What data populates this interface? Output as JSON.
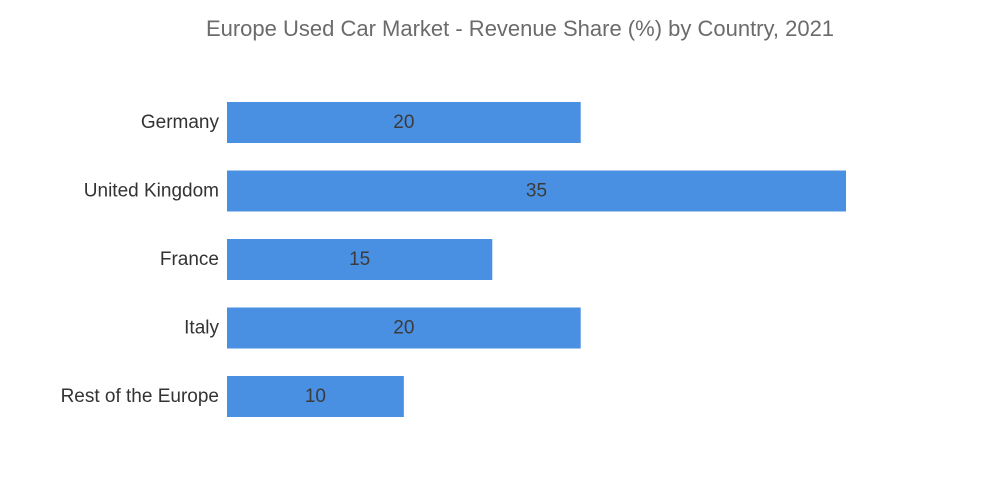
{
  "chart_data": {
    "type": "bar",
    "orientation": "horizontal",
    "title": "Europe Used Car Market - Revenue Share (%) by Country, 2021",
    "categories": [
      "Germany",
      "United Kingdom",
      "France",
      "Italy",
      "Rest of the Europe"
    ],
    "values": [
      20,
      35,
      15,
      20,
      10
    ],
    "xlabel": "",
    "ylabel": "",
    "xlim": [
      0,
      35
    ],
    "grid": false,
    "legend": "none",
    "bar_color": "#4a90e2",
    "data_labels": true
  }
}
